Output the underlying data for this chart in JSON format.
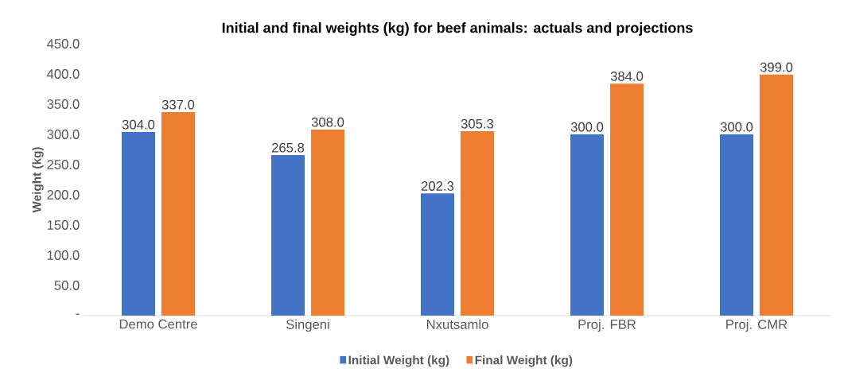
{
  "chart_data": {
    "type": "bar",
    "title": "Initial and final weights (kg) for beef animals: actuals and projections",
    "ylabel": "Weight (kg)",
    "categories": [
      "Demo Centre",
      "Singeni",
      "Nxutsamlo",
      "Proj. FBR",
      "Proj. CMR"
    ],
    "series": [
      {
        "name": "Initial Weight (kg)",
        "color": "#4472c4",
        "values": [
          304.0,
          265.8,
          202.3,
          300.0,
          300.0
        ],
        "value_labels": [
          "304.0",
          "265.8",
          "202.3",
          "300.0",
          "300.0"
        ]
      },
      {
        "name": "Final Weight (kg)",
        "color": "#ed7d31",
        "values": [
          337.0,
          308.0,
          305.3,
          384.0,
          399.0
        ],
        "value_labels": [
          "337.0",
          "308.0",
          "305.3",
          "384.0",
          "399.0"
        ]
      }
    ],
    "ylim": [
      0,
      450
    ],
    "yticks": [
      {
        "value": 0,
        "label": "-"
      },
      {
        "value": 50,
        "label": "50.0"
      },
      {
        "value": 100,
        "label": "100.0"
      },
      {
        "value": 150,
        "label": "150.0"
      },
      {
        "value": 200,
        "label": "200.0"
      },
      {
        "value": 250,
        "label": "250.0"
      },
      {
        "value": 300,
        "label": "300.0"
      },
      {
        "value": 350,
        "label": "350.0"
      },
      {
        "value": 400,
        "label": "400.0"
      },
      {
        "value": 450,
        "label": "450.0"
      }
    ],
    "legend": "bottom"
  }
}
